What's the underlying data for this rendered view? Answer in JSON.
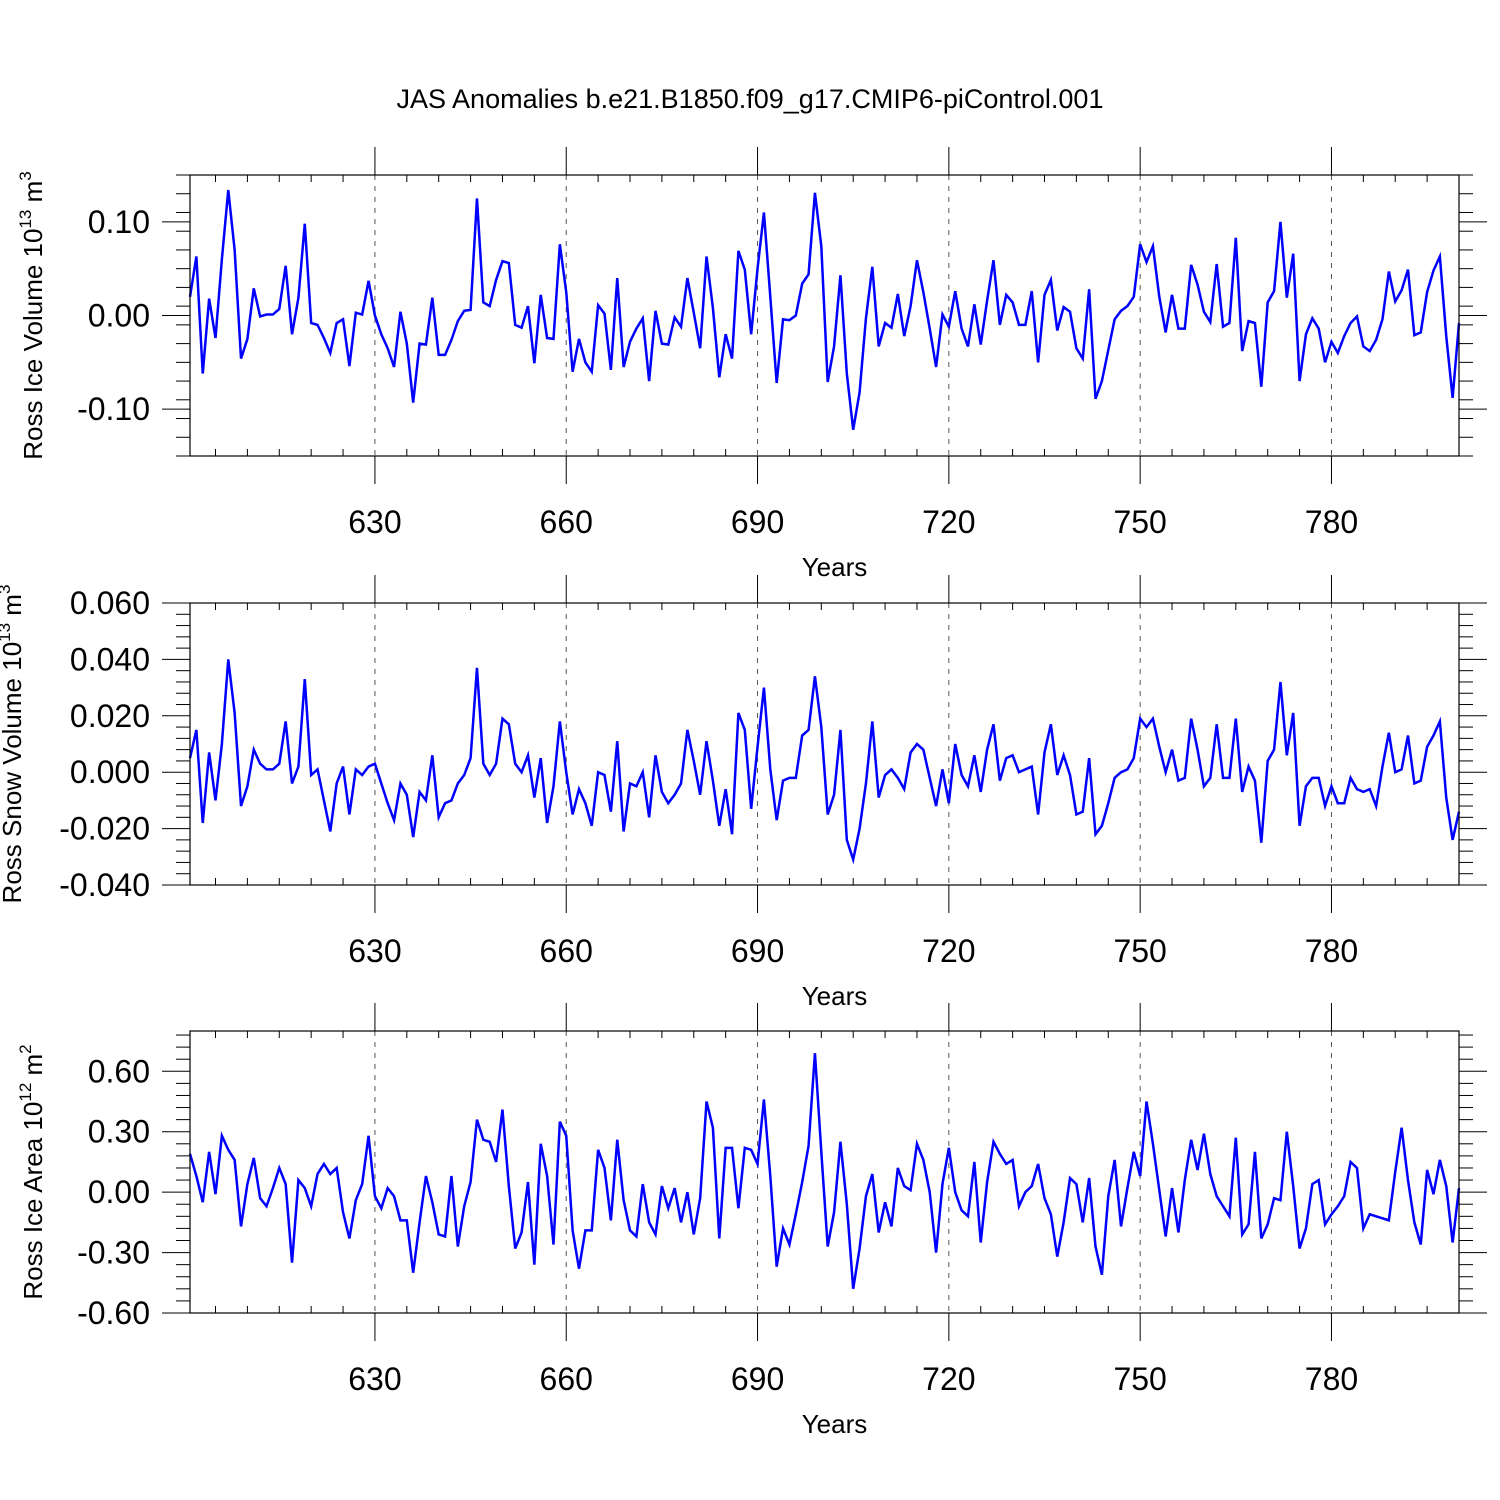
{
  "title": "JAS Anomalies b.e21.B1850.f09_g17.CMIP6-piControl.001",
  "colors": {
    "series": "#0000ff",
    "axis": "#000000",
    "grid": "#555555"
  },
  "chart_data": [
    {
      "type": "line",
      "ylabel": "Ross Ice Volume 10^13 m^3",
      "ylabel_base": "Ross Ice Volume 10",
      "ylabel_exp": "13",
      "ylabel_unit": " m",
      "ylabel_unit_exp": "3",
      "xlabel": "Years",
      "xlim": [
        601,
        800
      ],
      "ylim": [
        -0.15,
        0.15
      ],
      "xticks": [
        630,
        660,
        690,
        720,
        750,
        780
      ],
      "xtick_labels": [
        "630",
        "660",
        "690",
        "720",
        "750",
        "780"
      ],
      "yticks": [
        -0.1,
        0.0,
        0.1
      ],
      "ytick_labels": [
        "-0.10",
        "0.00",
        "0.10"
      ],
      "grid": "vertical dashed at major x ticks",
      "series": [
        {
          "x_start": 601,
          "values": [
            0.02,
            0.063,
            -0.062,
            0.018,
            -0.024,
            0.06,
            0.134,
            0.07,
            -0.046,
            -0.025,
            0.029,
            -0.001,
            0.001,
            0.001,
            0.007,
            0.053,
            -0.02,
            0.019,
            0.098,
            -0.008,
            -0.01,
            -0.024,
            -0.04,
            -0.008,
            -0.004,
            -0.054,
            0.003,
            0.001,
            0.037,
            0.0,
            -0.02,
            -0.035,
            -0.055,
            0.004,
            -0.03,
            -0.093,
            -0.03,
            -0.031,
            0.019,
            -0.042,
            -0.042,
            -0.026,
            -0.006,
            0.005,
            0.006,
            0.125,
            0.014,
            0.01,
            0.038,
            0.058,
            0.056,
            -0.01,
            -0.013,
            0.01,
            -0.051,
            0.022,
            -0.024,
            -0.025,
            0.076,
            0.025,
            -0.06,
            -0.025,
            -0.05,
            -0.06,
            0.011,
            0.002,
            -0.058,
            0.04,
            -0.055,
            -0.028,
            -0.014,
            -0.003,
            -0.07,
            0.005,
            -0.03,
            -0.031,
            -0.002,
            -0.012,
            0.04,
            0.003,
            -0.035,
            0.063,
            0.008,
            -0.066,
            -0.02,
            -0.046,
            0.069,
            0.049,
            -0.02,
            0.05,
            0.11,
            0.02,
            -0.072,
            -0.004,
            -0.005,
            0.0,
            0.034,
            0.044,
            0.131,
            0.074,
            -0.071,
            -0.033,
            0.043,
            -0.062,
            -0.122,
            -0.082,
            -0.003,
            0.052,
            -0.033,
            -0.008,
            -0.013,
            0.023,
            -0.022,
            0.01,
            0.059,
            0.025,
            -0.014,
            -0.055,
            0.001,
            -0.012,
            0.026,
            -0.014,
            -0.033,
            0.012,
            -0.031,
            0.016,
            0.059,
            -0.01,
            0.022,
            0.014,
            -0.01,
            -0.01,
            0.026,
            -0.05,
            0.022,
            0.038,
            -0.016,
            0.009,
            0.004,
            -0.035,
            -0.046,
            0.028,
            -0.089,
            -0.07,
            -0.037,
            -0.004,
            0.005,
            0.01,
            0.02,
            0.076,
            0.057,
            0.074,
            0.02,
            -0.018,
            0.022,
            -0.014,
            -0.014,
            0.054,
            0.033,
            0.004,
            -0.007,
            0.055,
            -0.012,
            -0.008,
            0.083,
            -0.038,
            -0.006,
            -0.008,
            -0.076,
            0.014,
            0.026,
            0.1,
            0.019,
            0.066,
            -0.07,
            -0.02,
            -0.003,
            -0.014,
            -0.05,
            -0.028,
            -0.04,
            -0.022,
            -0.008,
            -0.001,
            -0.033,
            -0.038,
            -0.026,
            -0.004,
            0.047,
            0.015,
            0.027,
            0.049,
            -0.021,
            -0.018,
            0.025,
            0.048,
            0.063,
            -0.022,
            -0.088,
            -0.008
          ]
        }
      ]
    },
    {
      "type": "line",
      "ylabel": "Ross Snow Volume 10^13 m^3",
      "ylabel_base": "Ross Snow Volume 10",
      "ylabel_exp": "13",
      "ylabel_unit": " m",
      "ylabel_unit_exp": "3",
      "xlabel": "Years",
      "xlim": [
        601,
        800
      ],
      "ylim": [
        -0.04,
        0.06
      ],
      "xticks": [
        630,
        660,
        690,
        720,
        750,
        780
      ],
      "xtick_labels": [
        "630",
        "660",
        "690",
        "720",
        "750",
        "780"
      ],
      "yticks": [
        -0.04,
        -0.02,
        0.0,
        0.02,
        0.04,
        0.06
      ],
      "ytick_labels": [
        "-0.040",
        "-0.020",
        "0.000",
        "0.020",
        "0.040",
        "0.060"
      ],
      "grid": "vertical dashed at major x ticks",
      "series": [
        {
          "x_start": 601,
          "values": [
            0.005,
            0.015,
            -0.018,
            0.007,
            -0.01,
            0.01,
            0.04,
            0.021,
            -0.012,
            -0.005,
            0.008,
            0.003,
            0.001,
            0.001,
            0.003,
            0.018,
            -0.004,
            0.002,
            0.033,
            -0.001,
            0.001,
            -0.01,
            -0.021,
            -0.004,
            0.002,
            -0.015,
            0.001,
            -0.001,
            0.002,
            0.003,
            -0.004,
            -0.011,
            -0.017,
            -0.004,
            -0.008,
            -0.023,
            -0.007,
            -0.01,
            0.006,
            -0.016,
            -0.011,
            -0.01,
            -0.004,
            -0.001,
            0.005,
            0.037,
            0.003,
            -0.001,
            0.003,
            0.019,
            0.017,
            0.003,
            0.0,
            0.006,
            -0.009,
            0.005,
            -0.018,
            -0.005,
            0.018,
            0.0,
            -0.015,
            -0.006,
            -0.011,
            -0.019,
            0.0,
            -0.001,
            -0.014,
            0.011,
            -0.021,
            -0.004,
            -0.005,
            0.0,
            -0.016,
            0.006,
            -0.007,
            -0.011,
            -0.008,
            -0.004,
            0.015,
            0.004,
            -0.008,
            0.011,
            -0.003,
            -0.019,
            -0.006,
            -0.022,
            0.021,
            0.015,
            -0.013,
            0.009,
            0.03,
            0.001,
            -0.017,
            -0.003,
            -0.002,
            -0.002,
            0.013,
            0.015,
            0.034,
            0.016,
            -0.015,
            -0.008,
            0.015,
            -0.024,
            -0.031,
            -0.02,
            -0.004,
            0.018,
            -0.009,
            -0.001,
            0.001,
            -0.002,
            -0.006,
            0.007,
            0.01,
            0.008,
            -0.002,
            -0.012,
            0.001,
            -0.011,
            0.01,
            -0.001,
            -0.005,
            0.006,
            -0.007,
            0.008,
            0.017,
            -0.003,
            0.005,
            0.006,
            0.0,
            0.001,
            0.002,
            -0.015,
            0.007,
            0.017,
            -0.001,
            0.006,
            -0.001,
            -0.015,
            -0.014,
            0.005,
            -0.022,
            -0.019,
            -0.011,
            -0.002,
            0.0,
            0.001,
            0.005,
            0.019,
            0.016,
            0.019,
            0.009,
            0.0,
            0.008,
            -0.003,
            -0.002,
            0.019,
            0.008,
            -0.005,
            -0.002,
            0.017,
            -0.002,
            -0.002,
            0.019,
            -0.007,
            0.002,
            -0.003,
            -0.025,
            0.004,
            0.008,
            0.032,
            0.006,
            0.021,
            -0.019,
            -0.005,
            -0.002,
            -0.002,
            -0.012,
            -0.005,
            -0.011,
            -0.011,
            -0.002,
            -0.006,
            -0.007,
            -0.006,
            -0.012,
            0.002,
            0.014,
            0.0,
            0.001,
            0.013,
            -0.004,
            -0.003,
            0.009,
            0.013,
            0.018,
            -0.009,
            -0.024,
            -0.014
          ]
        }
      ]
    },
    {
      "type": "line",
      "ylabel": "Ross Ice Area 10^12 m^2",
      "ylabel_base": "Ross Ice Area 10",
      "ylabel_exp": "12",
      "ylabel_unit": " m",
      "ylabel_unit_exp": "2",
      "xlabel": "Years",
      "xlim": [
        601,
        800
      ],
      "ylim": [
        -0.6,
        0.8
      ],
      "xticks": [
        630,
        660,
        690,
        720,
        750,
        780
      ],
      "xtick_labels": [
        "630",
        "660",
        "690",
        "720",
        "750",
        "780"
      ],
      "yticks": [
        -0.6,
        -0.3,
        0.0,
        0.3,
        0.6
      ],
      "ytick_labels": [
        "-0.60",
        "-0.30",
        "0.00",
        "0.30",
        "0.60"
      ],
      "grid": "vertical dashed at major x ticks",
      "series": [
        {
          "x_start": 601,
          "values": [
            0.19,
            0.08,
            -0.05,
            0.2,
            -0.01,
            0.28,
            0.21,
            0.16,
            -0.17,
            0.04,
            0.17,
            -0.03,
            -0.07,
            0.02,
            0.12,
            0.04,
            -0.35,
            0.06,
            0.02,
            -0.07,
            0.09,
            0.14,
            0.09,
            0.12,
            -0.1,
            -0.23,
            -0.04,
            0.04,
            0.28,
            -0.02,
            -0.08,
            0.02,
            -0.02,
            -0.14,
            -0.14,
            -0.4,
            -0.15,
            0.08,
            -0.05,
            -0.21,
            -0.22,
            0.08,
            -0.27,
            -0.07,
            0.05,
            0.36,
            0.26,
            0.25,
            0.15,
            0.41,
            0.03,
            -0.28,
            -0.2,
            0.05,
            -0.36,
            0.24,
            0.08,
            -0.26,
            0.35,
            0.28,
            -0.19,
            -0.38,
            -0.19,
            -0.19,
            0.21,
            0.12,
            -0.14,
            0.26,
            -0.04,
            -0.19,
            -0.22,
            0.04,
            -0.15,
            -0.21,
            0.03,
            -0.08,
            0.02,
            -0.15,
            0.0,
            -0.21,
            -0.03,
            0.45,
            0.32,
            -0.23,
            0.22,
            0.22,
            -0.08,
            0.22,
            0.21,
            0.14,
            0.46,
            0.08,
            -0.37,
            -0.18,
            -0.26,
            -0.11,
            0.05,
            0.23,
            0.69,
            0.2,
            -0.27,
            -0.1,
            0.25,
            -0.06,
            -0.48,
            -0.28,
            -0.02,
            0.09,
            -0.2,
            -0.05,
            -0.17,
            0.12,
            0.03,
            0.01,
            0.24,
            0.16,
            0.0,
            -0.3,
            0.04,
            0.22,
            0.0,
            -0.09,
            -0.12,
            0.15,
            -0.25,
            0.05,
            0.25,
            0.19,
            0.14,
            0.16,
            -0.07,
            0.0,
            0.03,
            0.14,
            -0.03,
            -0.11,
            -0.32,
            -0.15,
            0.07,
            0.04,
            -0.15,
            0.07,
            -0.27,
            -0.41,
            -0.02,
            0.16,
            -0.17,
            0.02,
            0.2,
            0.08,
            0.45,
            0.24,
            0.01,
            -0.22,
            0.02,
            -0.2,
            0.06,
            0.26,
            0.11,
            0.29,
            0.09,
            -0.02,
            -0.07,
            -0.12,
            0.27,
            -0.21,
            -0.16,
            0.2,
            -0.23,
            -0.16,
            -0.03,
            -0.04,
            0.3,
            0.03,
            -0.28,
            -0.18,
            0.04,
            0.06,
            -0.16,
            -0.11,
            -0.07,
            -0.02,
            0.15,
            0.12,
            -0.18,
            -0.11,
            -0.12,
            -0.13,
            -0.14,
            0.1,
            0.32,
            0.06,
            -0.15,
            -0.26,
            0.11,
            -0.01,
            0.16,
            0.03,
            -0.25,
            0.02
          ]
        }
      ]
    }
  ]
}
